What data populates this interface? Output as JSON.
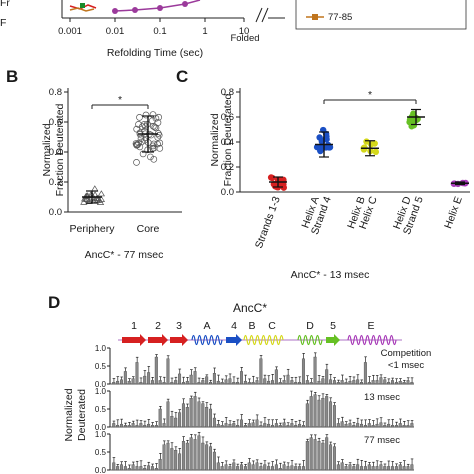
{
  "colors": {
    "strands": "#d62020",
    "helixA": "#1a4fc4",
    "helixB": "#d4d81a",
    "helixD": "#66c024",
    "helixE": "#a83cb8",
    "legend_orange": "#c0751d",
    "purple_line": "#9b3a9b",
    "bar_fill": "#888888",
    "bar_err": "#222222"
  },
  "panelA": {
    "xlabel": "Refolding Time (sec)",
    "xticks": [
      "0.001",
      "0.01",
      "0.1",
      "1",
      "10"
    ],
    "folded_label": "Folded",
    "legend_entry": "77-85"
  },
  "panelB": {
    "letter": "B",
    "ylabel_1": "Normalized",
    "ylabel_2": "Fraction Deuterated",
    "yticks": [
      "0.0",
      "0.2",
      "0.4",
      "0.6",
      "0.8"
    ],
    "categories": [
      "Periphery",
      "Core"
    ],
    "sig": "*",
    "caption": "AncC* - 77 msec"
  },
  "panelC": {
    "letter": "C",
    "ylabel_1": "Normalized",
    "ylabel_2": "Fraction Deuterated",
    "yticks": [
      "0.0",
      "0.2",
      "0.4",
      "0.6",
      "0.8"
    ],
    "categories": [
      "Strands 1-3",
      "Helix A Strand 4",
      "Helix B Helix C",
      "Helix D Strand 5",
      "Helix E"
    ],
    "sig": "*",
    "caption": "AncC* - 13 msec"
  },
  "panelD": {
    "letter": "D",
    "title": "AncC*",
    "ss_labels": [
      "1",
      "2",
      "3",
      "A",
      "4",
      "B",
      "C",
      "D",
      "5",
      "E"
    ],
    "ylabel_1": "Normalized",
    "ylabel_2": "Deuterated",
    "yticks": [
      "1.0",
      "0.5",
      "0.0"
    ],
    "rows": [
      {
        "label_1": "Competition",
        "label_2": "<1 msec"
      },
      {
        "label_1": "13 msec",
        "label_2": ""
      },
      {
        "label_1": "77 msec",
        "label_2": ""
      }
    ]
  },
  "chart_data": [
    {
      "type": "line",
      "title": "",
      "xlabel": "Refolding Time (sec)",
      "x_scale": "log",
      "xticks": [
        0.001,
        0.01,
        0.1,
        1,
        10
      ],
      "legend": [
        "77-85"
      ],
      "note": "panel A is cropped at the top; only the bottom of the plot is visible",
      "series": [
        {
          "name": "77-85",
          "x": [
            0.001,
            0.0013
          ],
          "y": [
            0.05,
            0.05
          ]
        }
      ]
    },
    {
      "type": "scatter",
      "title": "",
      "ylabel": "Normalized Fraction Deuterated",
      "xlabel": "AncC* - 77 msec",
      "ylim": [
        0,
        0.8
      ],
      "categories": [
        "Periphery",
        "Core"
      ],
      "means": [
        0.1,
        0.52
      ],
      "sd": [
        0.04,
        0.12
      ],
      "significance": "*"
    },
    {
      "type": "scatter",
      "title": "",
      "ylabel": "Normalized Fraction Deuterated",
      "xlabel": "AncC* - 13 msec",
      "ylim": [
        0,
        0.8
      ],
      "categories": [
        "Strands 1-3",
        "Helix A Strand 4",
        "Helix B Helix C",
        "Helix D Strand 5",
        "Helix E"
      ],
      "means": [
        0.08,
        0.38,
        0.35,
        0.6,
        0.07
      ],
      "sd": [
        0.04,
        0.1,
        0.06,
        0.06,
        0.01
      ],
      "significance": "*"
    },
    {
      "type": "bar",
      "title": "AncC*",
      "ylabel": "Normalized Deuterated",
      "ylim": [
        0,
        1.0
      ],
      "series": [
        {
          "name": "Competition <1 msec",
          "values": [
            0.05,
            0.08,
            0.12,
            0.35,
            0.08,
            0.15,
            0.6,
            0.05,
            0.22,
            0.32,
            0.1,
            0.75,
            0.1,
            0.05,
            0.7,
            0.05,
            0.1,
            0.28,
            0.05,
            0.08,
            0.25,
            0.35,
            0.05,
            0.1,
            0.2,
            0.05,
            0.3,
            0.08,
            0.05,
            0.12,
            0.15,
            0.05,
            0.05,
            0.35,
            0.08,
            0.05,
            0.05,
            0.1,
            0.7,
            0.15,
            0.08,
            0.1,
            0.4,
            0.05,
            0.1,
            0.25,
            0.1,
            0.05,
            0.05,
            0.7,
            0.1,
            0.05,
            0.75,
            0.08,
            0.15,
            0.4,
            0.12,
            0.1,
            0.05,
            0.1,
            0.05,
            0.08,
            0.1,
            0.12,
            0.05,
            0.6,
            0.05,
            0.1,
            0.1,
            0.18,
            0.12,
            0.05,
            0.1,
            0.05,
            0.08,
            0.05,
            0.1,
            0.05
          ]
        },
        {
          "name": "13 msec",
          "values": [
            0.1,
            0.05,
            0.08,
            0.05,
            0.05,
            0.1,
            0.05,
            0.1,
            0.05,
            0.08,
            0.05,
            0.05,
            0.5,
            0.1,
            0.7,
            0.3,
            0.25,
            0.4,
            0.65,
            0.55,
            0.8,
            0.85,
            0.7,
            0.65,
            0.55,
            0.5,
            0.25,
            0.08,
            0.05,
            0.1,
            0.08,
            0.1,
            0.05,
            0.2,
            0.05,
            0.1,
            0.12,
            0.2,
            0.05,
            0.1,
            0.08,
            0.05,
            0.1,
            0.05,
            0.12,
            0.05,
            0.1,
            0.05,
            0.08,
            0.05,
            0.65,
            0.85,
            0.9,
            0.75,
            0.8,
            0.85,
            0.7,
            0.6,
            0.1,
            0.15,
            0.08,
            0.1,
            0.05,
            0.1,
            0.08,
            0.05,
            0.1,
            0.05,
            0.08,
            0.12,
            0.05,
            0.08,
            0.05,
            0.05,
            0.1,
            0.05,
            0.05,
            0.1
          ]
        },
        {
          "name": "77 msec",
          "values": [
            0.2,
            0.1,
            0.15,
            0.1,
            0.05,
            0.15,
            0.1,
            0.1,
            0.05,
            0.12,
            0.1,
            0.05,
            0.3,
            0.7,
            0.75,
            0.6,
            0.55,
            0.45,
            0.8,
            0.75,
            0.9,
            0.85,
            0.95,
            0.75,
            0.7,
            0.65,
            0.5,
            0.2,
            0.1,
            0.15,
            0.1,
            0.2,
            0.1,
            0.15,
            0.1,
            0.2,
            0.15,
            0.2,
            0.1,
            0.15,
            0.1,
            0.1,
            0.15,
            0.05,
            0.15,
            0.1,
            0.12,
            0.1,
            0.1,
            0.1,
            0.8,
            0.9,
            0.85,
            0.8,
            0.75,
            0.9,
            0.7,
            0.65,
            0.15,
            0.2,
            0.1,
            0.15,
            0.1,
            0.15,
            0.1,
            0.1,
            0.15,
            0.1,
            0.1,
            0.15,
            0.1,
            0.1,
            0.1,
            0.1,
            0.15,
            0.1,
            0.1,
            0.15
          ]
        }
      ]
    }
  ]
}
